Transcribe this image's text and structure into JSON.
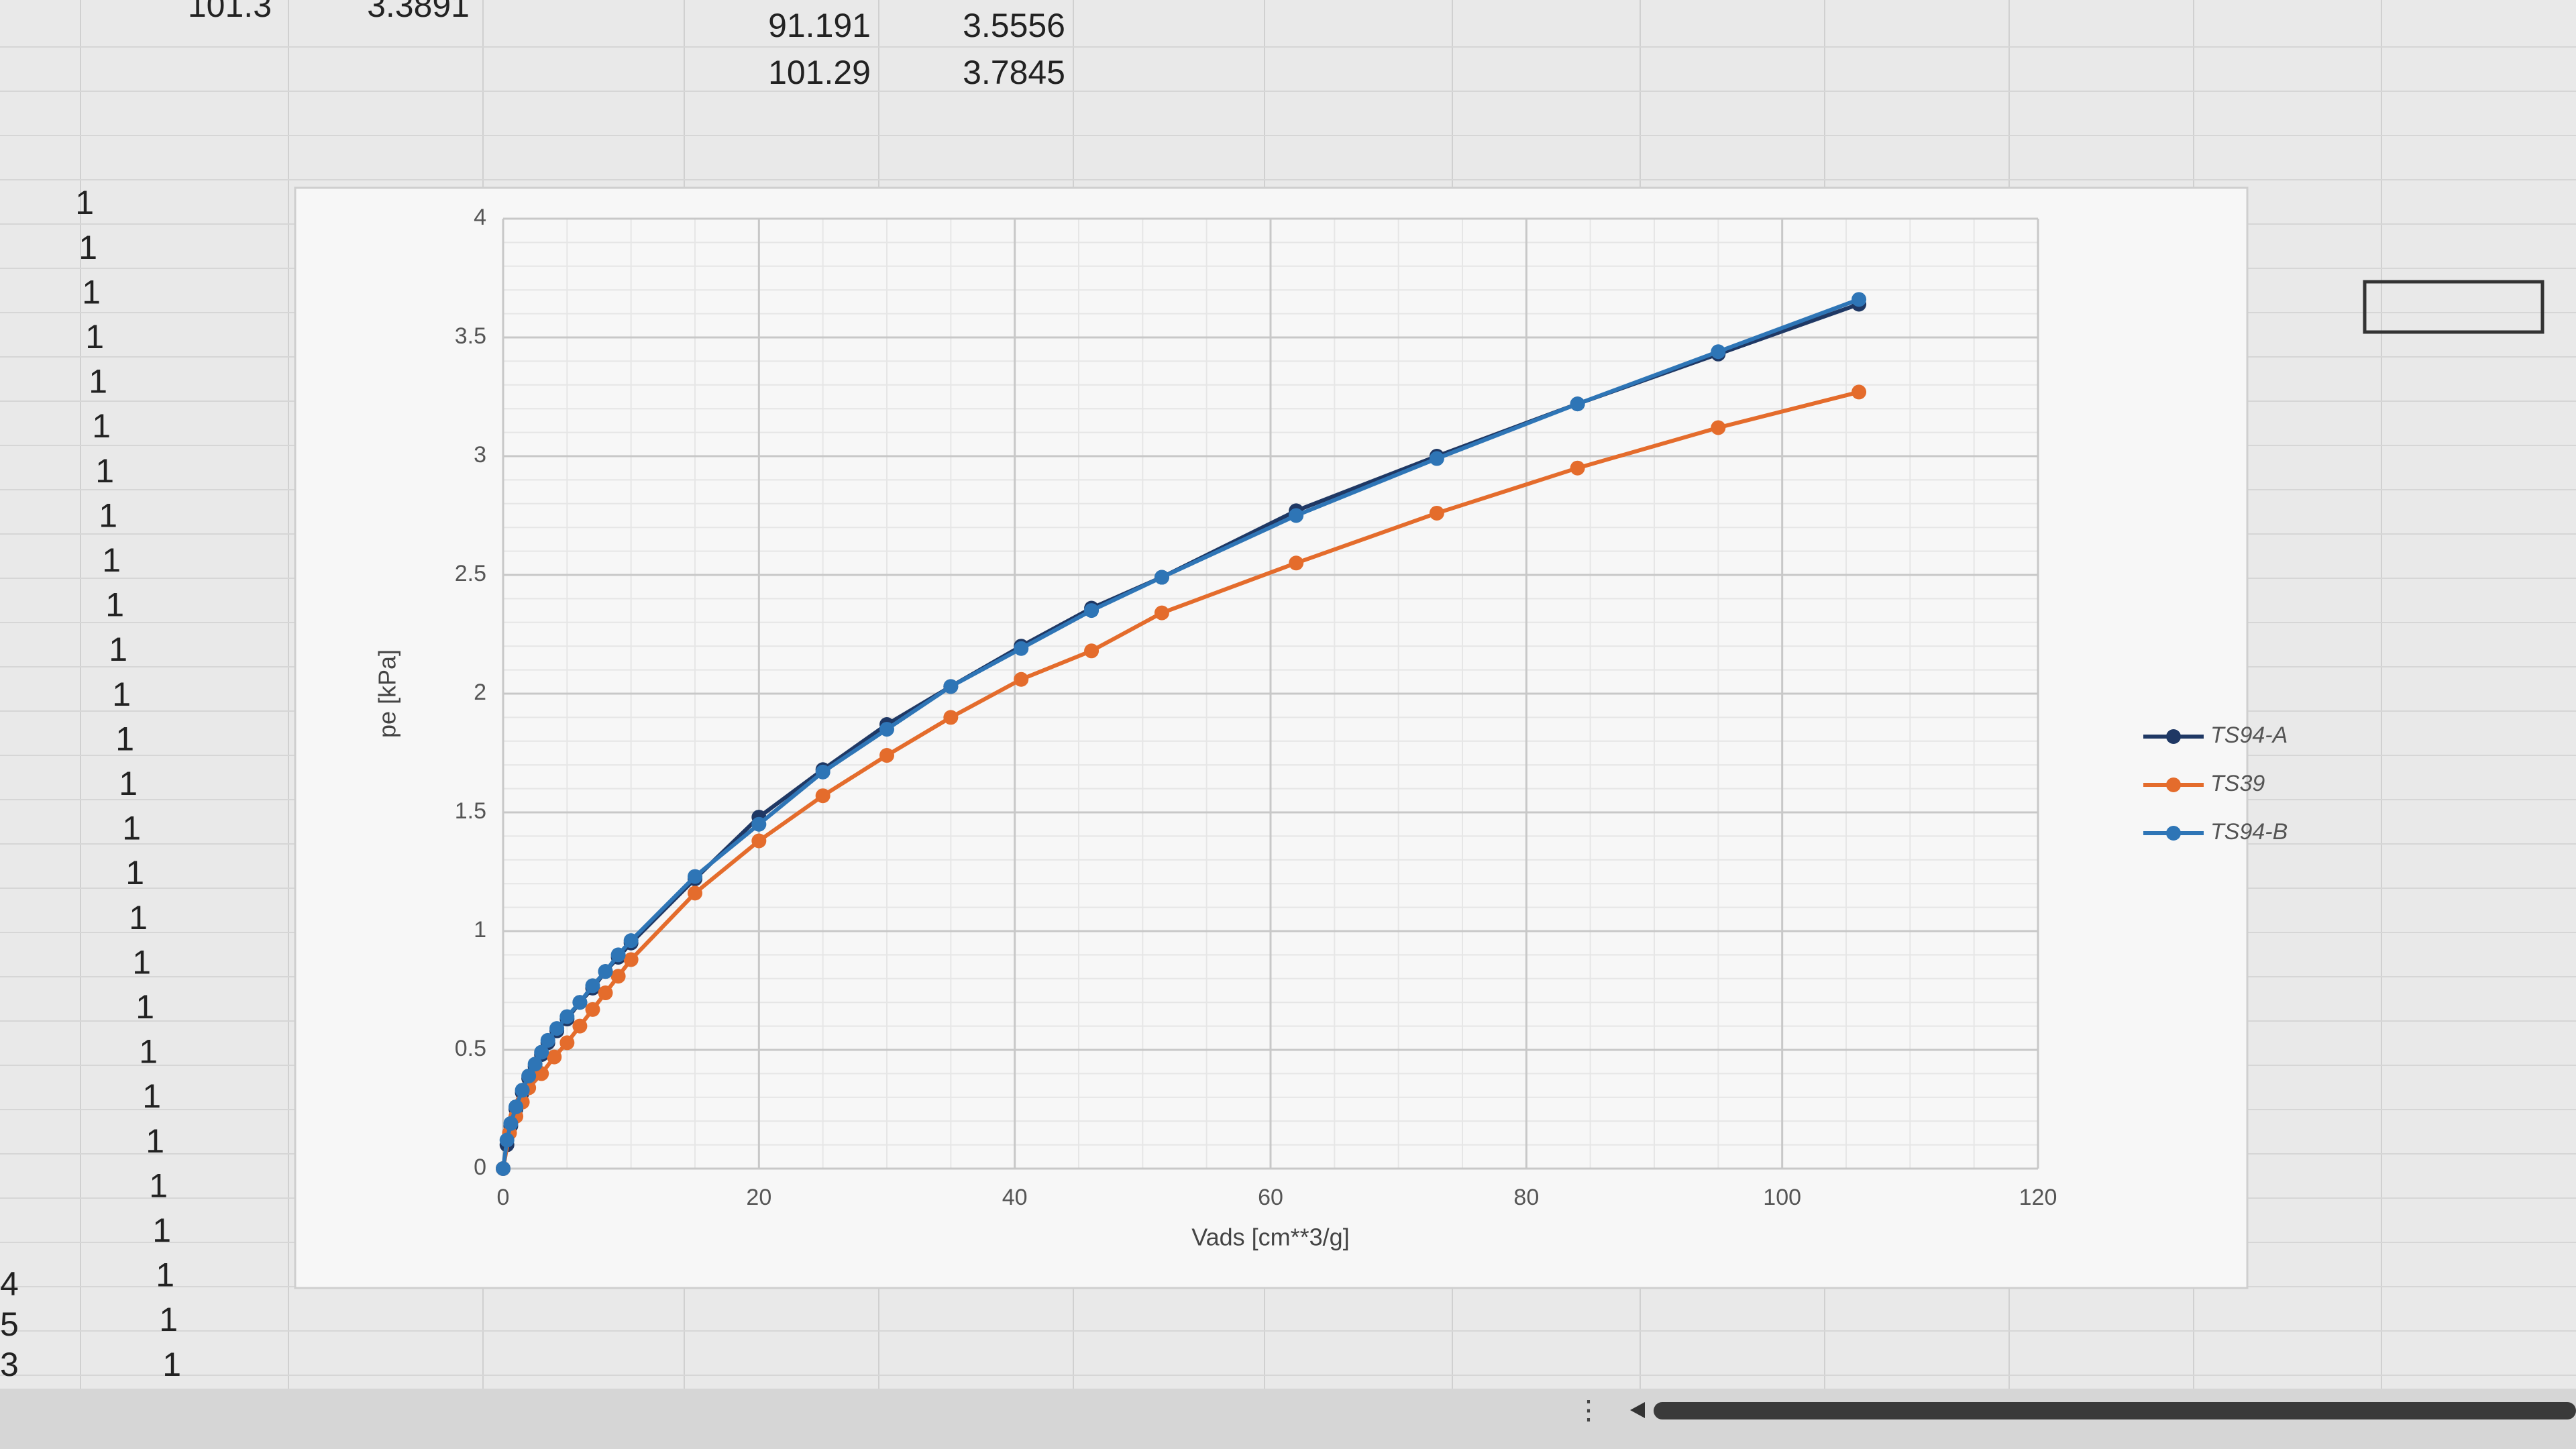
{
  "spreadsheet": {
    "top_cells": [
      {
        "a": "101.3",
        "b": "3.3891"
      },
      {
        "a": "91.191",
        "b": "3.5556"
      },
      {
        "a": "101.29",
        "b": "3.7845"
      }
    ],
    "ones_column": [
      "1",
      "1",
      "1",
      "1",
      "1",
      "1",
      "1",
      "1",
      "1",
      "1",
      "1",
      "1",
      "1",
      "1",
      "1",
      "1",
      "1",
      "1",
      "1",
      "1",
      "1",
      "1",
      "1",
      "1",
      "1",
      "1",
      "1"
    ],
    "left_edge": [
      "4",
      "5",
      "3"
    ]
  },
  "chart_data": {
    "type": "line",
    "x_label": "Vads [cm**3/g]",
    "y_label": "pe [kPa]",
    "xlim": [
      0,
      120
    ],
    "xticks": [
      0,
      20,
      40,
      60,
      80,
      100,
      120
    ],
    "ylim": [
      0,
      4
    ],
    "yticks": [
      0,
      0.5,
      1,
      1.5,
      2,
      2.5,
      3,
      3.5,
      4
    ],
    "grid": true,
    "legend": "right",
    "series": [
      {
        "name": "TS94-A",
        "color": "#1f3864",
        "x": [
          0,
          0.3,
          0.6,
          1,
          1.5,
          2,
          2.5,
          3,
          3.5,
          4.2,
          5,
          6,
          7,
          8,
          9,
          10,
          15,
          20,
          25,
          30,
          35,
          40.5,
          46,
          51.5,
          62,
          73,
          84,
          95,
          106
        ],
        "values": [
          0,
          0.1,
          0.18,
          0.25,
          0.32,
          0.38,
          0.43,
          0.48,
          0.53,
          0.58,
          0.63,
          0.7,
          0.76,
          0.83,
          0.89,
          0.95,
          1.22,
          1.48,
          1.68,
          1.87,
          2.03,
          2.2,
          2.36,
          2.49,
          2.77,
          3.0,
          3.22,
          3.43,
          3.64
        ]
      },
      {
        "name": "TS39",
        "color": "#e46c2c",
        "x": [
          0,
          0.5,
          1,
          1.5,
          2,
          3,
          4,
          5,
          6,
          7,
          8,
          9,
          10,
          15,
          20,
          25,
          30,
          35,
          40.5,
          46,
          51.5,
          62,
          73,
          84,
          95,
          106
        ],
        "values": [
          0,
          0.15,
          0.22,
          0.28,
          0.34,
          0.4,
          0.47,
          0.53,
          0.6,
          0.67,
          0.74,
          0.81,
          0.88,
          1.16,
          1.38,
          1.57,
          1.74,
          1.9,
          2.06,
          2.18,
          2.34,
          2.55,
          2.76,
          2.95,
          3.12,
          3.27
        ]
      },
      {
        "name": "TS94-B",
        "color": "#2e75b6",
        "x": [
          0,
          0.3,
          0.6,
          1,
          1.5,
          2,
          2.5,
          3,
          3.5,
          4.2,
          5,
          6,
          7,
          8,
          9,
          10,
          15,
          20,
          25,
          30,
          35,
          40.5,
          46,
          51.5,
          62,
          73,
          84,
          95,
          106
        ],
        "values": [
          0,
          0.12,
          0.19,
          0.26,
          0.33,
          0.39,
          0.44,
          0.49,
          0.54,
          0.59,
          0.64,
          0.7,
          0.77,
          0.83,
          0.9,
          0.96,
          1.23,
          1.45,
          1.67,
          1.85,
          2.03,
          2.19,
          2.35,
          2.49,
          2.75,
          2.99,
          3.22,
          3.44,
          3.66
        ]
      }
    ]
  }
}
